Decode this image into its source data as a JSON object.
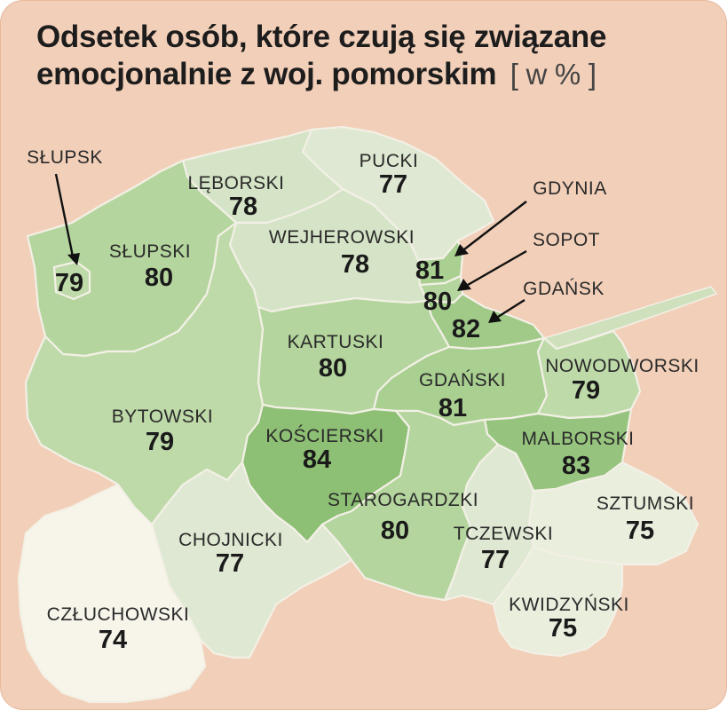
{
  "title": {
    "line1": "Odsetek osób, które czują się związane",
    "line2": "emocjonalnie z woj. pomorskim",
    "unit": "[ w % ]"
  },
  "colors": {
    "background": "#f2cfb8",
    "scale": {
      "74": "#f7f4ea",
      "75": "#e9eedd",
      "77": "#dfe8d2",
      "78": "#d5e3c6",
      "79": "#bedaa9",
      "80": "#b4d59d",
      "81": "#a9cf91",
      "82": "#a1ca89",
      "83": "#96c47e",
      "84": "#8dbf74"
    }
  },
  "regions": [
    {
      "id": "pucki",
      "name": "PUCKI",
      "value": "77"
    },
    {
      "id": "leborski",
      "name": "LĘBORSKI",
      "value": "78"
    },
    {
      "id": "slupski",
      "name": "SŁUPSKI",
      "value": "80"
    },
    {
      "id": "slupsk",
      "name": "SŁUPSK",
      "value": "79"
    },
    {
      "id": "wejherowski",
      "name": "WEJHEROWSKI",
      "value": "78"
    },
    {
      "id": "gdynia",
      "name": "GDYNIA",
      "value": "81"
    },
    {
      "id": "sopot",
      "name": "SOPOT",
      "value": "80"
    },
    {
      "id": "gdansk",
      "name": "GDAŃSK",
      "value": "82"
    },
    {
      "id": "kartuski",
      "name": "KARTUSKI",
      "value": "80"
    },
    {
      "id": "gdanski",
      "name": "GDAŃSKI",
      "value": "81"
    },
    {
      "id": "nowodworski",
      "name": "NOWODWORSKI",
      "value": "79"
    },
    {
      "id": "bytowski",
      "name": "BYTOWSKI",
      "value": "79"
    },
    {
      "id": "koscierski",
      "name": "KOŚCIERSKI",
      "value": "84"
    },
    {
      "id": "malborski",
      "name": "MALBORSKI",
      "value": "83"
    },
    {
      "id": "starogardzki",
      "name": "STAROGARDZKI",
      "value": "80"
    },
    {
      "id": "sztumski",
      "name": "SZTUMSKI",
      "value": "75"
    },
    {
      "id": "chojnicki",
      "name": "CHOJNICKI",
      "value": "77"
    },
    {
      "id": "tczewski",
      "name": "TCZEWSKI",
      "value": "77"
    },
    {
      "id": "czluchowski",
      "name": "CZŁUCHOWSKI",
      "value": "74"
    },
    {
      "id": "kwidzynski",
      "name": "KWIDZYŃSKI",
      "value": "75"
    }
  ]
}
